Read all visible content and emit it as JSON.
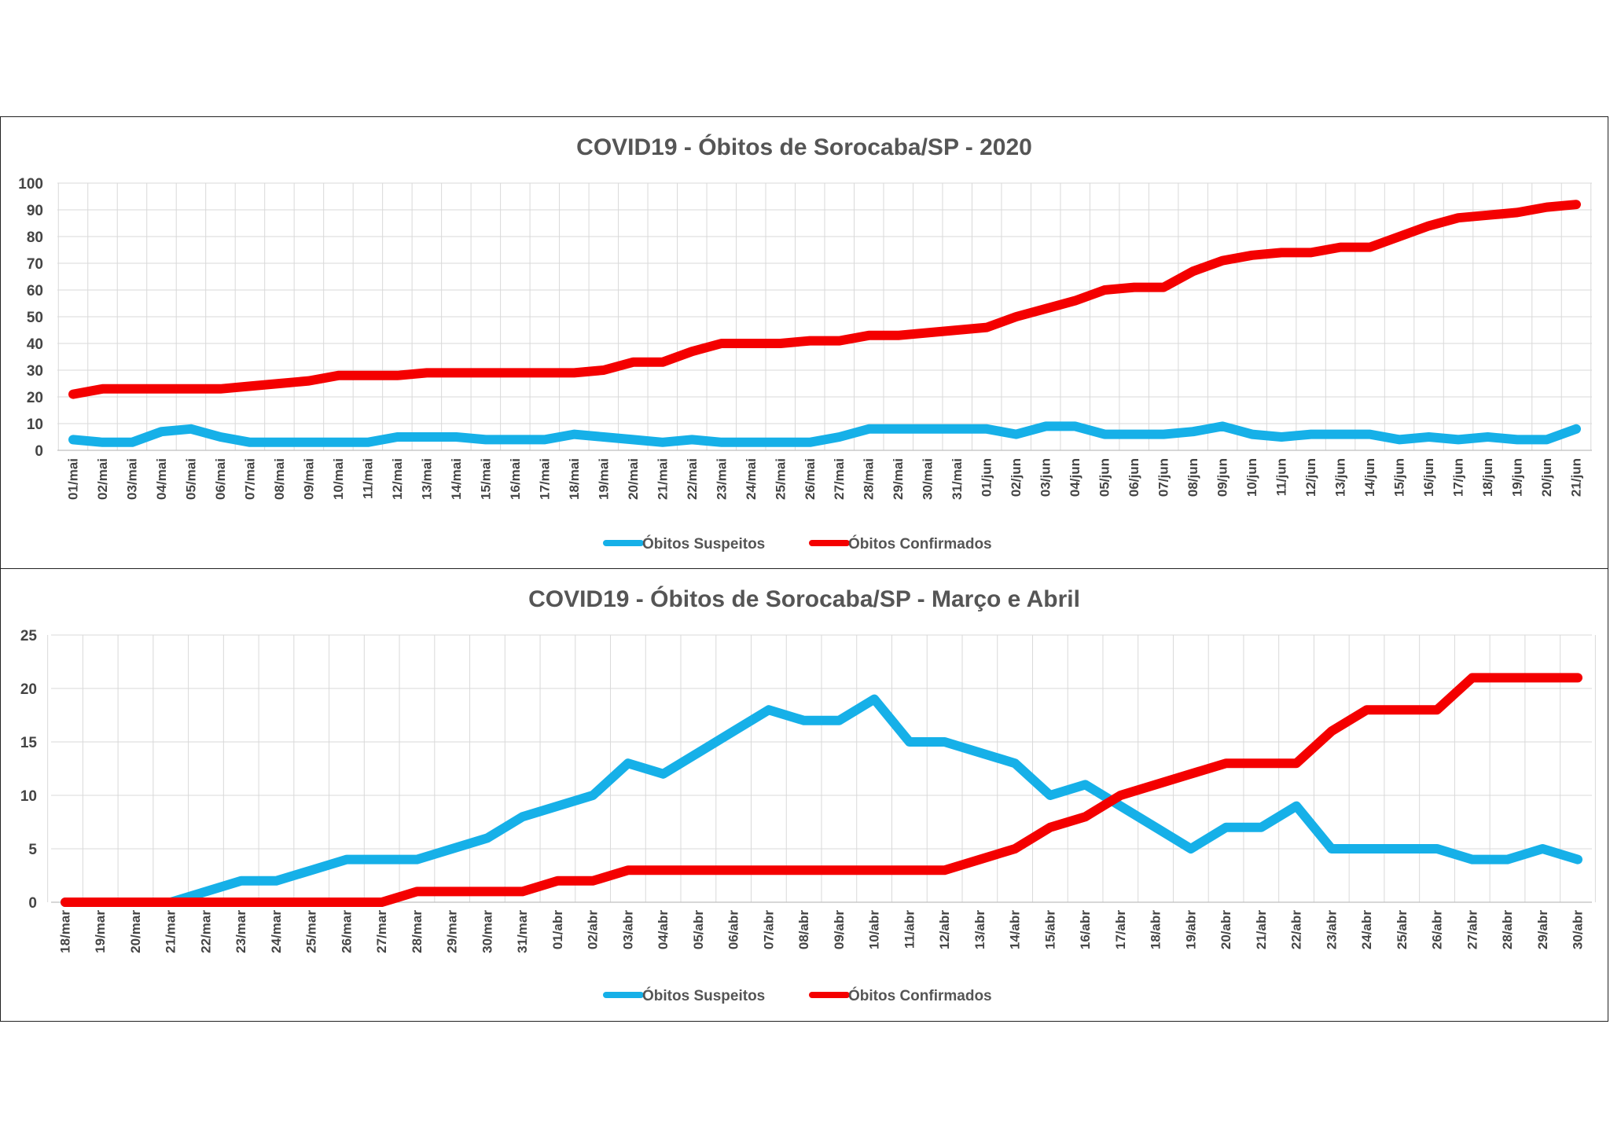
{
  "colors": {
    "suspeitos": "#16b0e8",
    "confirmados": "#f40000"
  },
  "chart_data": [
    {
      "type": "line",
      "title": "COVID19 - Óbitos  de Sorocaba/SP - 2020",
      "xlabel": "",
      "ylabel": "",
      "ylim": [
        0,
        100
      ],
      "yticks": [
        0,
        10,
        20,
        30,
        40,
        50,
        60,
        70,
        80,
        90,
        100
      ],
      "grid": true,
      "legend": "bottom-center",
      "x": [
        "01/mai",
        "02/mai",
        "03/mai",
        "04/mai",
        "05/mai",
        "06/mai",
        "07/mai",
        "08/mai",
        "09/mai",
        "10/mai",
        "11/mai",
        "12/mai",
        "13/mai",
        "14/mai",
        "15/mai",
        "16/mai",
        "17/mai",
        "18/mai",
        "19/mai",
        "20/mai",
        "21/mai",
        "22/mai",
        "23/mai",
        "24/mai",
        "25/mai",
        "26/mai",
        "27/mai",
        "28/mai",
        "29/mai",
        "30/mai",
        "31/mai",
        "01/jun",
        "02/jun",
        "03/jun",
        "04/jun",
        "05/jun",
        "06/jun",
        "07/jun",
        "08/jun",
        "09/jun",
        "10/jun",
        "11/jun",
        "12/jun",
        "13/jun",
        "14/jun",
        "15/jun",
        "16/jun",
        "17/jun",
        "18/jun",
        "19/jun",
        "20/jun",
        "21/jun"
      ],
      "series": [
        {
          "name": "Óbitos Suspeitos",
          "color_key": "suspeitos",
          "values": [
            4,
            3,
            3,
            7,
            8,
            5,
            3,
            3,
            3,
            3,
            3,
            5,
            5,
            5,
            4,
            4,
            4,
            6,
            5,
            4,
            3,
            4,
            3,
            3,
            3,
            3,
            5,
            8,
            8,
            8,
            8,
            8,
            6,
            9,
            9,
            6,
            6,
            6,
            7,
            9,
            6,
            5,
            6,
            6,
            6,
            4,
            5,
            4,
            5,
            4,
            4,
            8
          ]
        },
        {
          "name": "Óbitos Confirmados",
          "color_key": "confirmados",
          "values": [
            21,
            23,
            23,
            23,
            23,
            23,
            24,
            25,
            26,
            28,
            28,
            28,
            29,
            29,
            29,
            29,
            29,
            29,
            30,
            33,
            33,
            37,
            40,
            40,
            40,
            41,
            41,
            43,
            43,
            44,
            45,
            46,
            50,
            53,
            56,
            60,
            61,
            61,
            67,
            71,
            73,
            74,
            74,
            76,
            76,
            80,
            84,
            87,
            88,
            89,
            91,
            92
          ]
        }
      ]
    },
    {
      "type": "line",
      "title": "COVID19 - Óbitos  de Sorocaba/SP - Março e Abril",
      "xlabel": "",
      "ylabel": "",
      "ylim": [
        0,
        25
      ],
      "yticks": [
        0,
        5,
        10,
        15,
        20,
        25
      ],
      "grid": true,
      "legend": "bottom-center",
      "x": [
        "18/mar",
        "19/mar",
        "20/mar",
        "21/mar",
        "22/mar",
        "23/mar",
        "24/mar",
        "25/mar",
        "26/mar",
        "27/mar",
        "28/mar",
        "29/mar",
        "30/mar",
        "31/mar",
        "01/abr",
        "02/abr",
        "03/abr",
        "04/abr",
        "05/abr",
        "06/abr",
        "07/abr",
        "08/abr",
        "09/abr",
        "10/abr",
        "11/abr",
        "12/abr",
        "13/abr",
        "14/abr",
        "15/abr",
        "16/abr",
        "17/abr",
        "18/abr",
        "19/abr",
        "20/abr",
        "21/abr",
        "22/abr",
        "23/abr",
        "24/abr",
        "25/abr",
        "26/abr",
        "27/abr",
        "28/abr",
        "29/abr",
        "30/abr"
      ],
      "series": [
        {
          "name": "Óbitos Suspeitos",
          "color_key": "suspeitos",
          "values": [
            0,
            0,
            0,
            0,
            1,
            2,
            2,
            3,
            4,
            4,
            4,
            5,
            6,
            8,
            9,
            10,
            13,
            12,
            14,
            16,
            18,
            17,
            17,
            19,
            15,
            15,
            14,
            13,
            10,
            11,
            9,
            7,
            5,
            7,
            7,
            9,
            5,
            5,
            5,
            5,
            4,
            4,
            5,
            4
          ]
        },
        {
          "name": "Óbitos Confirmados",
          "color_key": "confirmados",
          "values": [
            0,
            0,
            0,
            0,
            0,
            0,
            0,
            0,
            0,
            0,
            1,
            1,
            1,
            1,
            2,
            2,
            3,
            3,
            3,
            3,
            3,
            3,
            3,
            3,
            3,
            3,
            4,
            5,
            7,
            8,
            10,
            11,
            12,
            13,
            13,
            13,
            16,
            18,
            18,
            18,
            21,
            21,
            21,
            21
          ]
        }
      ]
    }
  ]
}
